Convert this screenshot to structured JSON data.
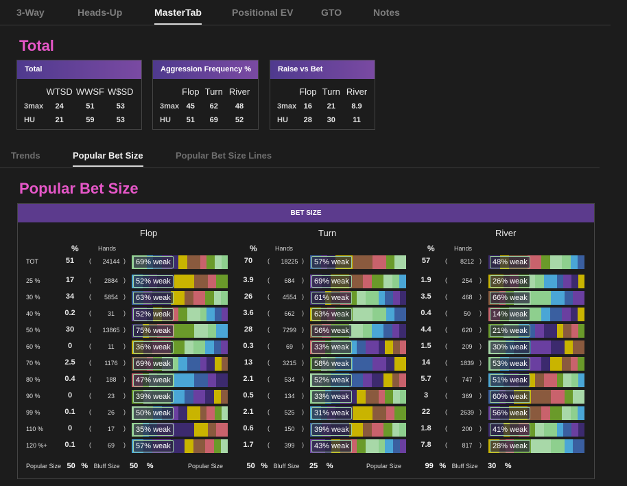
{
  "tabs": [
    "3-Way",
    "Heads-Up",
    "MasterTab",
    "Positional EV",
    "GTO",
    "Notes"
  ],
  "active_tab": "MasterTab",
  "total_title": "Total",
  "stat_tables": [
    {
      "title": "Total",
      "cols": [
        "WTSD",
        "WWSF",
        "W$SD"
      ],
      "rows": [
        {
          "label": "3max",
          "values": [
            "24",
            "51",
            "53"
          ]
        },
        {
          "label": "HU",
          "values": [
            "21",
            "59",
            "53"
          ]
        }
      ]
    },
    {
      "title": "Aggression Frequency %",
      "cols": [
        "Flop",
        "Turn",
        "River"
      ],
      "rows": [
        {
          "label": "3max",
          "values": [
            "45",
            "62",
            "48"
          ]
        },
        {
          "label": "HU",
          "values": [
            "51",
            "69",
            "52"
          ]
        }
      ]
    },
    {
      "title": "Raise vs Bet",
      "cols": [
        "Flop",
        "Turn",
        "River"
      ],
      "rows": [
        {
          "label": "3max",
          "values": [
            "16",
            "21",
            "8.9"
          ]
        },
        {
          "label": "HU",
          "values": [
            "28",
            "30",
            "11"
          ]
        }
      ]
    }
  ],
  "subtabs": [
    "Trends",
    "Popular Bet Size",
    "Popular Bet Size Lines"
  ],
  "popular_title": "Popular Bet Size",
  "bet_size_header": "BET SIZE",
  "streets": [
    "Flop",
    "Turn",
    "River"
  ],
  "col_pct": "%",
  "col_hands": "Hands",
  "colors": {
    "accent": "#e657c8",
    "header": "#5c3b8d"
  },
  "rows": [
    {
      "label": "TOT",
      "cells": [
        {
          "pct": "51",
          "hands": "24144",
          "weak": "69% weak"
        },
        {
          "pct": "70",
          "hands": "18225",
          "weak": "57% weak"
        },
        {
          "pct": "57",
          "hands": "8212",
          "weak": "48% weak"
        }
      ]
    },
    {
      "label": "25 %",
      "cells": [
        {
          "pct": "17",
          "hands": "2884",
          "weak": "52% weak"
        },
        {
          "pct": "3.9",
          "hands": "684",
          "weak": "69% weak"
        },
        {
          "pct": "1.9",
          "hands": "254",
          "weak": "26% weak"
        }
      ]
    },
    {
      "label": "30 %",
      "cells": [
        {
          "pct": "34",
          "hands": "5854",
          "weak": "63% weak"
        },
        {
          "pct": "26",
          "hands": "4554",
          "weak": "61% weak"
        },
        {
          "pct": "3.5",
          "hands": "468",
          "weak": "66% weak"
        }
      ]
    },
    {
      "label": "40 %",
      "cells": [
        {
          "pct": "0.2",
          "hands": "31",
          "weak": "52% weak"
        },
        {
          "pct": "3.6",
          "hands": "662",
          "weak": "63% weak"
        },
        {
          "pct": "0.4",
          "hands": "50",
          "weak": "14% weak"
        }
      ]
    },
    {
      "label": "50 %",
      "cells": [
        {
          "pct": "30",
          "hands": "13865",
          "weak": "75% weak"
        },
        {
          "pct": "28",
          "hands": "7299",
          "weak": "56% weak"
        },
        {
          "pct": "4.4",
          "hands": "620",
          "weak": "21% weak"
        }
      ]
    },
    {
      "label": "60 %",
      "cells": [
        {
          "pct": "0",
          "hands": "11",
          "weak": "36% weak"
        },
        {
          "pct": "0.3",
          "hands": "69",
          "weak": "33% weak"
        },
        {
          "pct": "1.5",
          "hands": "209",
          "weak": "30% weak"
        }
      ]
    },
    {
      "label": "70 %",
      "cells": [
        {
          "pct": "2.5",
          "hands": "1176",
          "weak": "69% weak"
        },
        {
          "pct": "13",
          "hands": "3215",
          "weak": "58% weak"
        },
        {
          "pct": "14",
          "hands": "1839",
          "weak": "53% weak"
        }
      ]
    },
    {
      "label": "80 %",
      "cells": [
        {
          "pct": "0.4",
          "hands": "188",
          "weak": "47% weak"
        },
        {
          "pct": "2.1",
          "hands": "534",
          "weak": "52% weak"
        },
        {
          "pct": "5.7",
          "hands": "747",
          "weak": "51% weak"
        }
      ]
    },
    {
      "label": "90 %",
      "cells": [
        {
          "pct": "0",
          "hands": "23",
          "weak": "39% weak"
        },
        {
          "pct": "0.5",
          "hands": "134",
          "weak": "33% weak"
        },
        {
          "pct": "3",
          "hands": "369",
          "weak": "60% weak"
        }
      ]
    },
    {
      "label": "99 %",
      "cells": [
        {
          "pct": "0.1",
          "hands": "26",
          "weak": "50% weak"
        },
        {
          "pct": "2.1",
          "hands": "525",
          "weak": "31% weak"
        },
        {
          "pct": "22",
          "hands": "2639",
          "weak": "56% weak"
        }
      ]
    },
    {
      "label": "110 %",
      "cells": [
        {
          "pct": "0",
          "hands": "17",
          "weak": "35% weak"
        },
        {
          "pct": "0.6",
          "hands": "150",
          "weak": "39% weak"
        },
        {
          "pct": "1.8",
          "hands": "200",
          "weak": "41% weak"
        }
      ]
    },
    {
      "label": "120 %+",
      "cells": [
        {
          "pct": "0.1",
          "hands": "69",
          "weak": "57% weak"
        },
        {
          "pct": "1.7",
          "hands": "399",
          "weak": "43% weak"
        },
        {
          "pct": "7.8",
          "hands": "817",
          "weak": "28% weak"
        }
      ]
    }
  ],
  "footer": [
    {
      "popular_label": "Popular Size",
      "popular": "50",
      "bluff_label": "Bluff Size",
      "bluff": "50",
      "unit": "%"
    },
    {
      "popular_label": "Popular Size",
      "popular": "50",
      "bluff_label": "Bluff Size",
      "bluff": "25",
      "unit": "%"
    },
    {
      "popular_label": "Popular Size",
      "popular": "99",
      "bluff_label": "Bluff Size",
      "bluff": "30",
      "unit": "%"
    }
  ]
}
